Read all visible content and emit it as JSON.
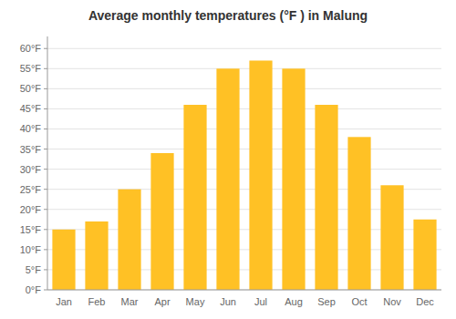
{
  "chart_data": {
    "type": "bar",
    "title": "Average monthly temperatures (°F ) in Malung",
    "categories": [
      "Jan",
      "Feb",
      "Mar",
      "Apr",
      "May",
      "Jun",
      "Jul",
      "Aug",
      "Sep",
      "Oct",
      "Nov",
      "Dec"
    ],
    "values": [
      15,
      17,
      25,
      34,
      46,
      55,
      57,
      55,
      46,
      38,
      26,
      17.5
    ],
    "color": "#FFC125",
    "ylim": [
      0,
      63
    ],
    "yticks": [
      {
        "value": 0,
        "label": "0°F"
      },
      {
        "value": 5,
        "label": "5°F"
      },
      {
        "value": 10,
        "label": "10°F"
      },
      {
        "value": 15,
        "label": "15°F"
      },
      {
        "value": 20,
        "label": "20°F"
      },
      {
        "value": 25,
        "label": "25°F"
      },
      {
        "value": 30,
        "label": "30°F"
      },
      {
        "value": 35,
        "label": "35°F"
      },
      {
        "value": 40,
        "label": "40°F"
      },
      {
        "value": 45,
        "label": "45°F"
      },
      {
        "value": 50,
        "label": "50°F"
      },
      {
        "value": 55,
        "label": "55°F"
      },
      {
        "value": 60,
        "label": "60°F"
      }
    ],
    "grid": true
  }
}
